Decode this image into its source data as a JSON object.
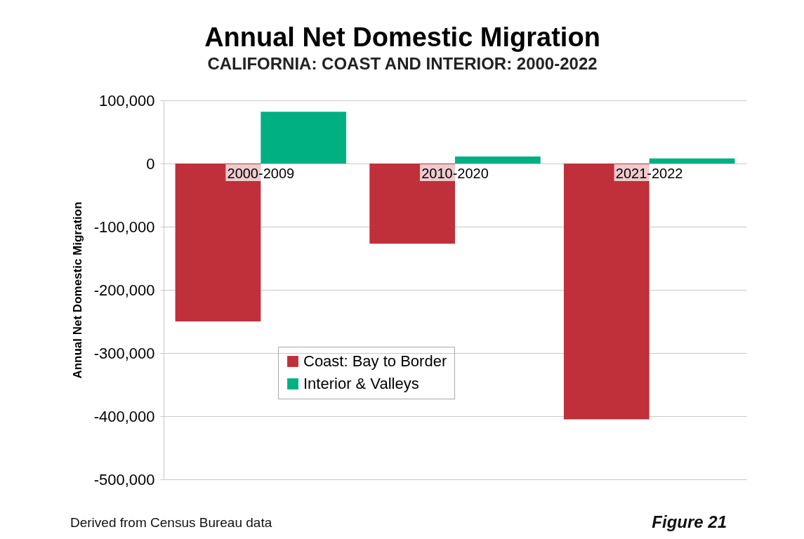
{
  "chart_data": {
    "type": "bar",
    "title": "Annual Net Domestic Migration",
    "subtitle": "CALIFORNIA: COAST AND INTERIOR: 2000-2022",
    "ylabel": "Annual Net Domestic Migration",
    "categories": [
      "2000-2009",
      "2010-2020",
      "2021-2022"
    ],
    "series": [
      {
        "name": "Coast: Bay to Border",
        "color": "#c0303a",
        "values": [
          -250000,
          -127000,
          -405000
        ]
      },
      {
        "name": "Interior & Valleys",
        "color": "#00b083",
        "values": [
          82000,
          11000,
          8000
        ]
      }
    ],
    "ylim": [
      -500000,
      100000
    ],
    "yticks": [
      {
        "value": -500000,
        "label": "-500,000"
      },
      {
        "value": -400000,
        "label": "-400,000"
      },
      {
        "value": -300000,
        "label": "-300,000"
      },
      {
        "value": -200000,
        "label": "-200,000"
      },
      {
        "value": -100000,
        "label": "-100,000"
      },
      0,
      {
        "value": 100000,
        "label": "100,000"
      }
    ],
    "grid": "y",
    "legend": "bottom left",
    "annotations": [
      "Derived from Census Bureau data",
      "Figure 21"
    ]
  }
}
